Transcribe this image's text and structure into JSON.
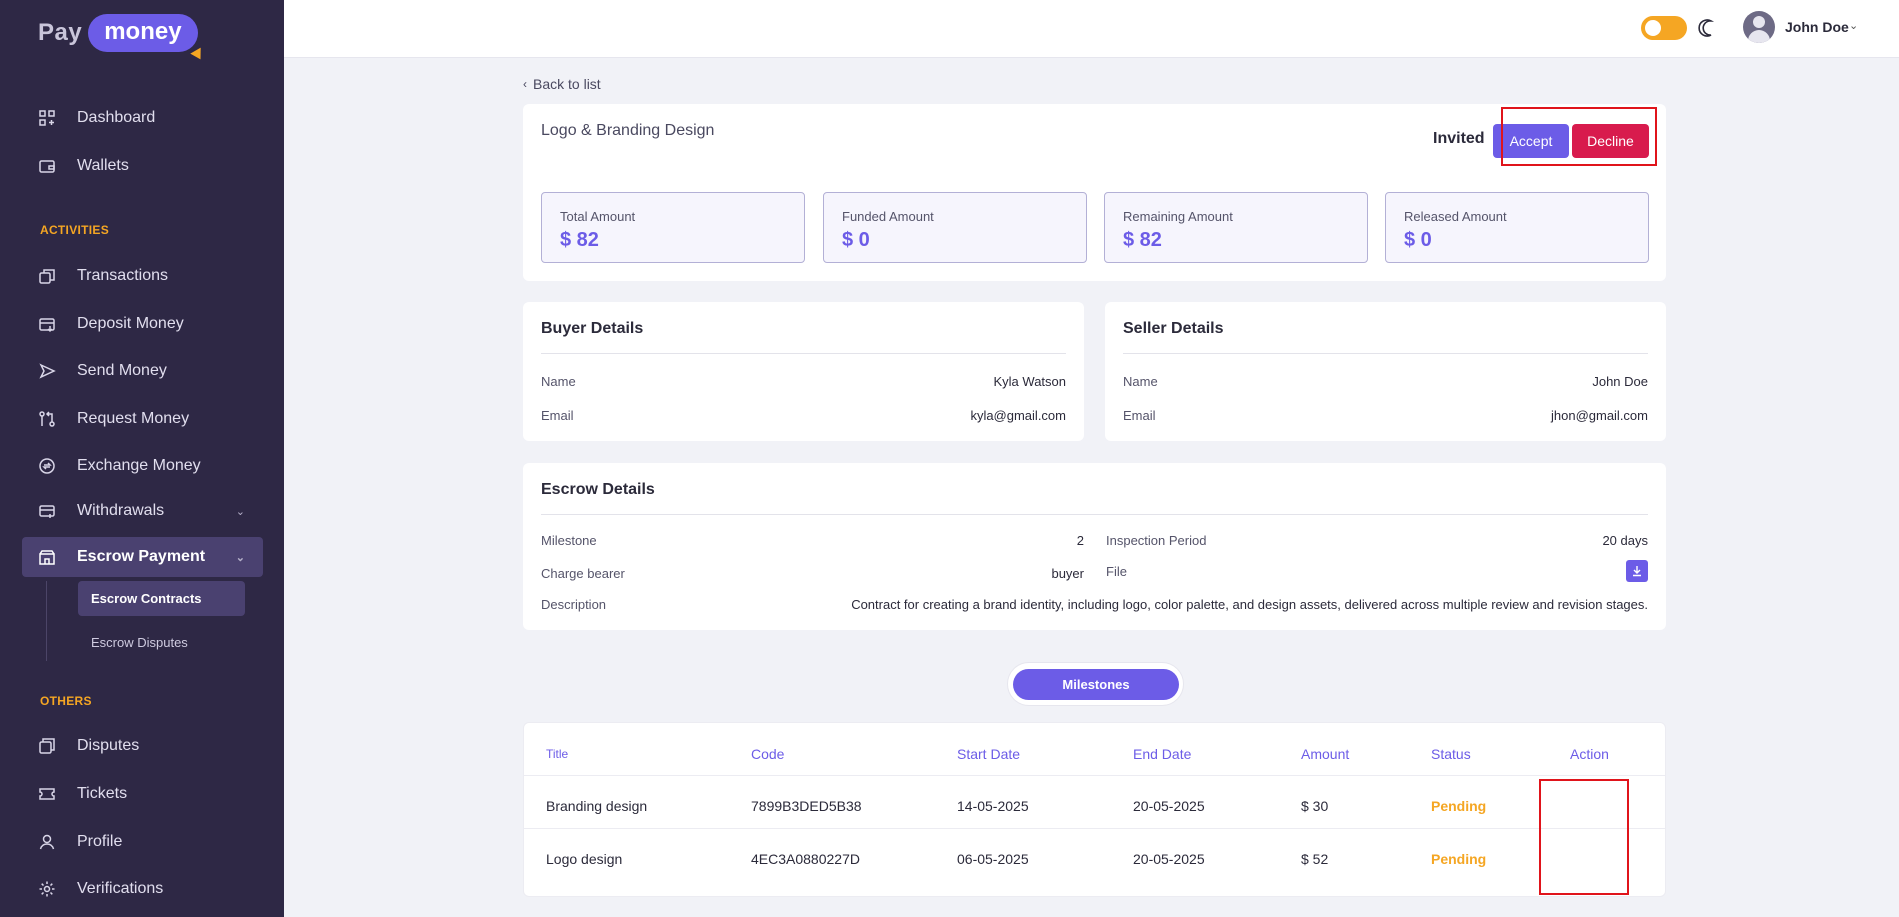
{
  "brand": {
    "pay": "Pay",
    "money": "money"
  },
  "sidebar": {
    "items": [
      {
        "label": "Dashboard",
        "icon": "dashboard-icon"
      },
      {
        "label": "Wallets",
        "icon": "wallet-icon"
      },
      {
        "label": "Transactions",
        "icon": "transactions-icon"
      },
      {
        "label": "Deposit Money",
        "icon": "deposit-icon"
      },
      {
        "label": "Send Money",
        "icon": "send-icon"
      },
      {
        "label": "Request Money",
        "icon": "request-icon"
      },
      {
        "label": "Exchange Money",
        "icon": "exchange-icon"
      },
      {
        "label": "Withdrawals",
        "icon": "withdrawal-icon"
      },
      {
        "label": "Escrow Payment",
        "icon": "escrow-icon"
      },
      {
        "label": "Disputes",
        "icon": "disputes-icon"
      },
      {
        "label": "Tickets",
        "icon": "ticket-icon"
      },
      {
        "label": "Profile",
        "icon": "profile-icon"
      },
      {
        "label": "Verifications",
        "icon": "gear-icon"
      }
    ],
    "sections": {
      "activities": "ACTIVITIES",
      "others": "OTHERS"
    },
    "escrow_sub": [
      "Escrow Contracts",
      "Escrow Disputes"
    ]
  },
  "header": {
    "user_name": "John Doe"
  },
  "back_label": "Back to list",
  "contract": {
    "title": "Logo & Branding Design",
    "status": "Invited",
    "accept_label": "Accept",
    "decline_label": "Decline",
    "stats": [
      {
        "label": "Total Amount",
        "value": "$ 82"
      },
      {
        "label": "Funded Amount",
        "value": "$ 0"
      },
      {
        "label": "Remaining Amount",
        "value": "$ 82"
      },
      {
        "label": "Released Amount",
        "value": "$ 0"
      }
    ]
  },
  "buyer": {
    "title": "Buyer Details",
    "name_label": "Name",
    "name": "Kyla Watson",
    "email_label": "Email",
    "email": "kyla@gmail.com"
  },
  "seller": {
    "title": "Seller Details",
    "name_label": "Name",
    "name": "John Doe",
    "email_label": "Email",
    "email": "jhon@gmail.com"
  },
  "escrow": {
    "title": "Escrow Details",
    "milestone_label": "Milestone",
    "milestone": "2",
    "inspection_label": "Inspection Period",
    "inspection": "20 days",
    "charge_label": "Charge bearer",
    "charge": "buyer",
    "file_label": "File",
    "description_label": "Description",
    "description": "Contract for creating a brand identity, including logo, color palette, and design assets, delivered across multiple review and revision stages."
  },
  "milestones_tab": "Milestones",
  "table": {
    "headers": [
      "Title",
      "Code",
      "Start Date",
      "End Date",
      "Amount",
      "Status",
      "Action"
    ],
    "rows": [
      {
        "title": "Branding design",
        "code": "7899B3DED5B38",
        "start": "14-05-2025",
        "end": "20-05-2025",
        "amount": "$ 30",
        "status": "Pending"
      },
      {
        "title": "Logo design",
        "code": "4EC3A0880227D",
        "start": "06-05-2025",
        "end": "20-05-2025",
        "amount": "$ 52",
        "status": "Pending"
      }
    ]
  },
  "colors": {
    "accent": "#6c5ce7",
    "danger": "#d81b4d",
    "warning": "#f5a623",
    "sidebar": "#2e2845"
  }
}
